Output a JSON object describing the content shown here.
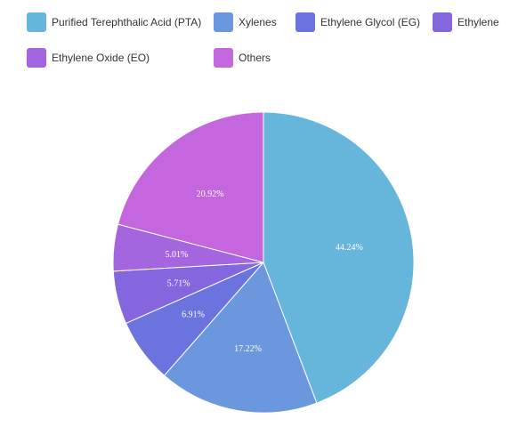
{
  "chart_data": {
    "type": "pie",
    "title": "",
    "legend_position": "top",
    "categories": [
      "Purified Terephthalic Acid (PTA)",
      "Xylenes",
      "Ethylene Glycol (EG)",
      "Ethylene",
      "Ethylene Oxide (EO)",
      "Others"
    ],
    "values": [
      44.24,
      17.22,
      6.91,
      5.71,
      5.01,
      20.92
    ],
    "value_labels": [
      "44.24%",
      "17.22%",
      "6.91%",
      "5.71%",
      "5.01%",
      "20.92%"
    ],
    "colors": [
      "#66b6dc",
      "#6a97de",
      "#6a73de",
      "#8466de",
      "#a466de",
      "#c466de"
    ]
  }
}
